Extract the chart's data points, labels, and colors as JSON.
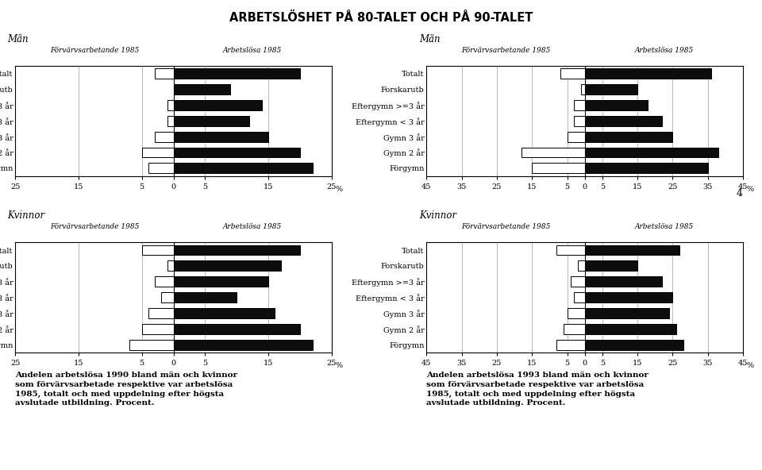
{
  "title": "ARBETSLÖSHET PÅ 80-TALET OCH PÅ 90-TALET",
  "categories": [
    "Totalt",
    "Forskarutb",
    "Eftergymn >=3 år",
    "Eftergymn < 3 år",
    "Gymn 3 år",
    "Gymn 2 år",
    "Förgymn"
  ],
  "panel_left": {
    "header_left": "Förvärvsarbetande 1985",
    "header_right": "Arbetslösa 1985",
    "xlim": 25,
    "xtick_vals": [
      25,
      15,
      5,
      5,
      15,
      25
    ],
    "man_forv": [
      3,
      0,
      1,
      1,
      3,
      5,
      4
    ],
    "man_arbl": [
      20,
      9,
      14,
      12,
      15,
      20,
      22
    ],
    "kvinna_forv": [
      5,
      1,
      3,
      2,
      4,
      5,
      7
    ],
    "kvinna_arbl": [
      20,
      17,
      15,
      10,
      16,
      20,
      22
    ],
    "caption": "Andelen arbetslösa 1990 bland män och kvinnor som förvärvsarbetade respektive var arbetslösa 1985, totalt och med uppdelning efter högsta avslutade utbildning. Procent."
  },
  "panel_right": {
    "header_left": "Förvärvsarbetande 1985",
    "header_right": "Arbetslösa 1985",
    "xlim": 45,
    "xtick_vals": [
      45,
      35,
      25,
      15,
      5,
      5,
      15,
      25,
      35,
      45
    ],
    "man_forv": [
      7,
      1,
      3,
      3,
      5,
      18,
      15
    ],
    "man_arbl": [
      36,
      15,
      18,
      22,
      25,
      38,
      35
    ],
    "kvinna_forv": [
      8,
      2,
      4,
      3,
      5,
      6,
      8
    ],
    "kvinna_arbl": [
      27,
      15,
      22,
      25,
      24,
      26,
      28
    ],
    "caption": "Andelen arbetslösa 1993 bland män och kvinnor som förvärvsarbetade respektive var arbetslösa 1985, totalt och med uppdelning efter högsta avslutade utbildning. Procent."
  },
  "page_num": "4",
  "bg_color": "#ffffff",
  "bar_black": "#0d0d0d",
  "bar_white": "#ffffff",
  "bar_edge": "#000000"
}
